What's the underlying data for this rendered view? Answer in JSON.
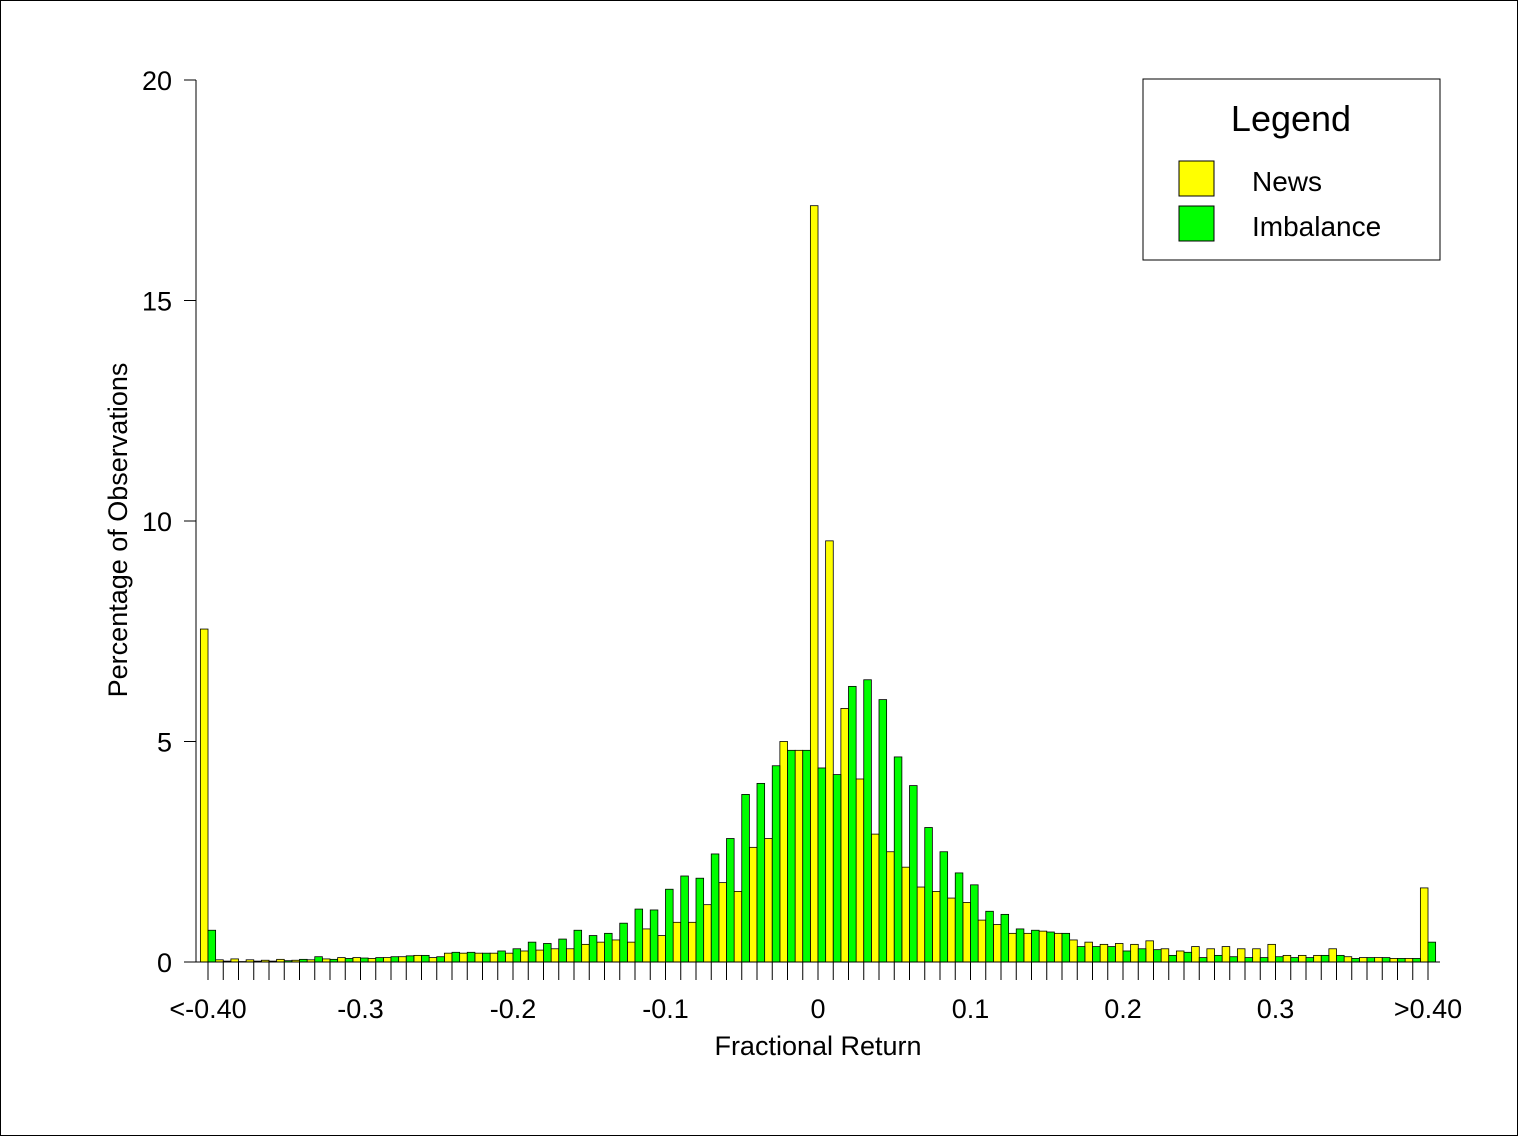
{
  "chart_data": {
    "type": "bar",
    "title": "",
    "xlabel": "Fractional Return",
    "ylabel": "Percentage of Observations",
    "ylim": [
      0,
      20
    ],
    "xlim": [
      -0.4,
      0.4
    ],
    "x_ticks": [
      {
        "label": "<-0.40",
        "value": -0.4
      },
      {
        "label": "-0.3",
        "value": -0.3
      },
      {
        "label": "-0.2",
        "value": -0.2
      },
      {
        "label": "-0.1",
        "value": -0.1
      },
      {
        "label": "0",
        "value": 0
      },
      {
        "label": "0.1",
        "value": 0.1
      },
      {
        "label": "0.2",
        "value": 0.2
      },
      {
        "label": "0.3",
        "value": 0.3
      },
      {
        "label": ">0.40",
        "value": 0.4
      }
    ],
    "y_ticks": [
      0,
      5,
      10,
      15,
      20
    ],
    "bin_width": 0.01,
    "bin_centers": [
      -0.4,
      -0.39,
      -0.38,
      -0.37,
      -0.36,
      -0.35,
      -0.34,
      -0.33,
      -0.32,
      -0.31,
      -0.3,
      -0.29,
      -0.28,
      -0.27,
      -0.26,
      -0.25,
      -0.24,
      -0.23,
      -0.22,
      -0.21,
      -0.2,
      -0.19,
      -0.18,
      -0.17,
      -0.16,
      -0.15,
      -0.14,
      -0.13,
      -0.12,
      -0.11,
      -0.1,
      -0.09,
      -0.08,
      -0.07,
      -0.06,
      -0.05,
      -0.04,
      -0.03,
      -0.02,
      -0.01,
      0,
      0.01,
      0.02,
      0.03,
      0.04,
      0.05,
      0.06,
      0.07,
      0.08,
      0.09,
      0.1,
      0.11,
      0.12,
      0.13,
      0.14,
      0.15,
      0.16,
      0.17,
      0.18,
      0.19,
      0.2,
      0.21,
      0.22,
      0.23,
      0.24,
      0.25,
      0.26,
      0.27,
      0.28,
      0.29,
      0.3,
      0.31,
      0.32,
      0.33,
      0.34,
      0.35,
      0.36,
      0.37,
      0.38,
      0.39,
      0.4
    ],
    "legend": {
      "title": "Legend",
      "position": "top-right"
    },
    "series": [
      {
        "name": "News",
        "color": "#ffff00",
        "values": [
          7.55,
          0.05,
          0.07,
          0.05,
          0.04,
          0.06,
          0.04,
          0.05,
          0.07,
          0.1,
          0.1,
          0.08,
          0.1,
          0.12,
          0.15,
          0.1,
          0.2,
          0.2,
          0.2,
          0.2,
          0.2,
          0.25,
          0.27,
          0.3,
          0.3,
          0.4,
          0.45,
          0.5,
          0.45,
          0.75,
          0.6,
          0.9,
          0.9,
          1.3,
          1.8,
          1.6,
          2.6,
          2.8,
          5.0,
          4.8,
          17.15,
          9.55,
          5.75,
          4.15,
          2.9,
          2.5,
          2.15,
          1.7,
          1.6,
          1.45,
          1.35,
          0.95,
          0.85,
          0.65,
          0.65,
          0.7,
          0.65,
          0.5,
          0.45,
          0.4,
          0.42,
          0.4,
          0.48,
          0.3,
          0.25,
          0.35,
          0.3,
          0.35,
          0.3,
          0.3,
          0.4,
          0.15,
          0.15,
          0.15,
          0.3,
          0.12,
          0.1,
          0.1,
          0.08,
          0.08,
          1.68
        ]
      },
      {
        "name": "Imbalance",
        "color": "#00ff00",
        "values": [
          0.72,
          0.02,
          0.01,
          0.02,
          0.02,
          0.03,
          0.06,
          0.12,
          0.06,
          0.08,
          0.09,
          0.1,
          0.12,
          0.14,
          0.15,
          0.12,
          0.22,
          0.22,
          0.2,
          0.25,
          0.3,
          0.45,
          0.42,
          0.52,
          0.72,
          0.6,
          0.65,
          0.88,
          1.2,
          1.18,
          1.65,
          1.95,
          1.9,
          2.45,
          2.8,
          3.8,
          4.05,
          4.45,
          4.8,
          4.8,
          4.4,
          4.25,
          6.25,
          6.4,
          5.95,
          4.65,
          4.0,
          3.05,
          2.5,
          2.02,
          1.75,
          1.15,
          1.08,
          0.75,
          0.72,
          0.68,
          0.65,
          0.35,
          0.35,
          0.35,
          0.25,
          0.3,
          0.28,
          0.15,
          0.22,
          0.1,
          0.15,
          0.12,
          0.1,
          0.1,
          0.12,
          0.1,
          0.1,
          0.15,
          0.15,
          0.08,
          0.1,
          0.1,
          0.08,
          0.08,
          0.45
        ]
      }
    ]
  }
}
